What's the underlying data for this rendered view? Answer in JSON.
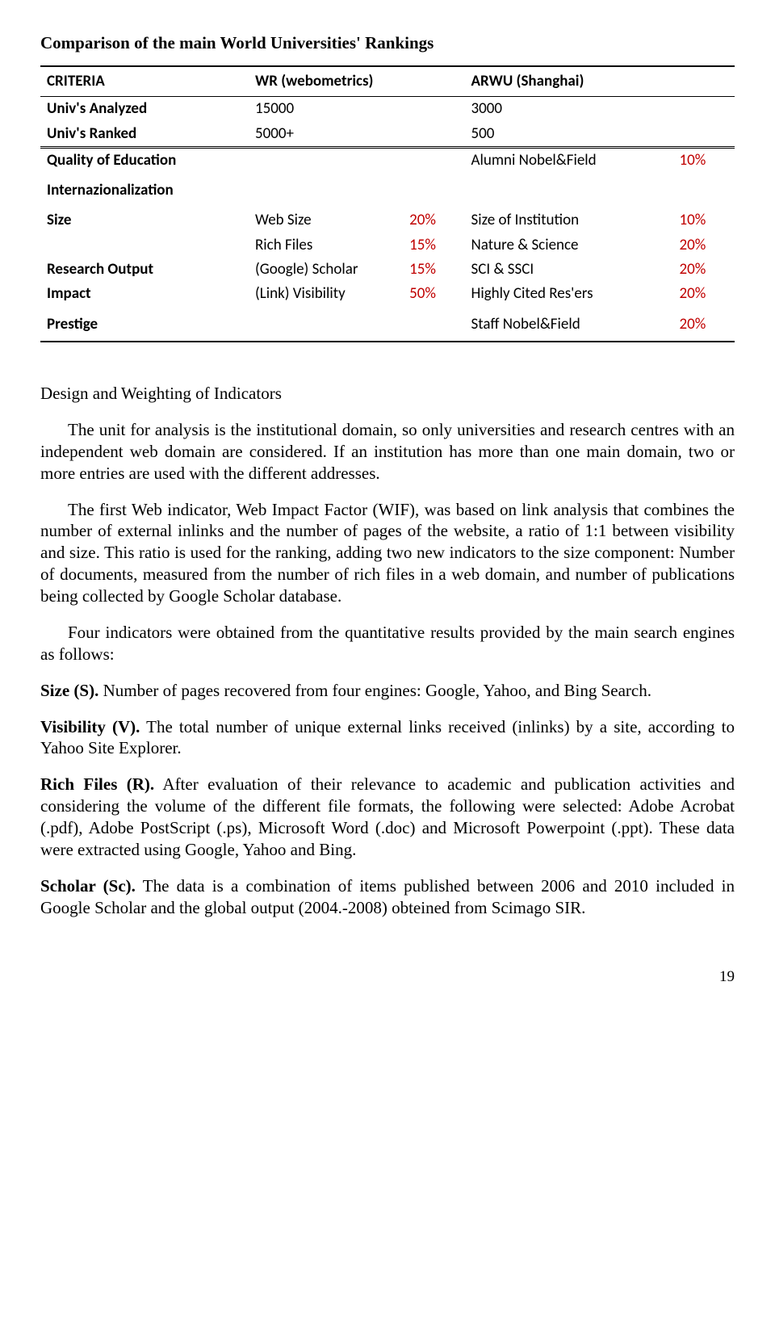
{
  "title": "Comparison of the main World Universities' Rankings",
  "table": {
    "headers": {
      "criteria": "CRITERIA",
      "wr": "WR (webometrics)",
      "arwu": "ARWU (Shanghai)"
    },
    "rows": {
      "r1": {
        "crit": "Univ's Analyzed",
        "wr": "15000",
        "arwu": "3000"
      },
      "r2": {
        "crit": "Univ's Ranked",
        "wr": "5000+",
        "arwu": "500"
      },
      "r3": {
        "crit": "Quality of Education",
        "wr": "",
        "wr_pct": "",
        "arwu": "Alumni Nobel&Field",
        "arwu_pct": "10%"
      },
      "r4": {
        "crit": "Internazionalization",
        "wr": "",
        "wr_pct": "",
        "arwu": "",
        "arwu_pct": ""
      },
      "r5": {
        "crit": "Size",
        "wr": "Web Size",
        "wr_pct": "20%",
        "arwu": "Size of Institution",
        "arwu_pct": "10%"
      },
      "r6": {
        "crit": "",
        "wr": "Rich Files",
        "wr_pct": "15%",
        "arwu": "Nature & Science",
        "arwu_pct": "20%"
      },
      "r7": {
        "crit": "Research Output",
        "wr": "(Google) Scholar",
        "wr_pct": "15%",
        "arwu": "SCI & SSCI",
        "arwu_pct": "20%"
      },
      "r8": {
        "crit": "Impact",
        "wr": "(Link) Visibility",
        "wr_pct": "50%",
        "arwu": "Highly Cited Res'ers",
        "arwu_pct": "20%"
      },
      "r9": {
        "crit": "Prestige",
        "wr": "",
        "wr_pct": "",
        "arwu": "Staff Nobel&Field",
        "arwu_pct": "20%"
      }
    },
    "colors": {
      "percent": "#c00000",
      "text": "#000000",
      "border": "#000000"
    }
  },
  "section_heading": "Design and Weighting of Indicators",
  "paragraphs": {
    "p1": "The unit for analysis is the institutional domain, so only universities and research centres with an independent web domain are considered. If an institution has more than one main domain, two or more entries are used with the different addresses.",
    "p2": "The first Web indicator, Web Impact Factor (WIF), was based on link analysis that combines the number of external inlinks and the number of pages of the website, a ratio of 1:1 between visibility and size. This ratio is used for the ranking, adding two new indicators to the size component: Number of documents, measured from the number of rich files in a web domain, and number of publications being collected by Google Scholar database.",
    "p3": "Four indicators were obtained from the quantitative results provided by the main search engines as follows:",
    "size_label": "Size (S).",
    "size_text": " Number of pages recovered from four engines: Google, Yahoo, and Bing Search.",
    "vis_label": "Visibility (V).",
    "vis_text": " The total number of unique external links received (inlinks) by a site, according to Yahoo Site Explorer.",
    "rich_label": "Rich Files (R).",
    "rich_text": " After evaluation of their relevance to academic and publication activities and considering the volume of the different file formats, the following were selected: Adobe Acrobat (.pdf), Adobe PostScript (.ps), Microsoft Word (.doc) and Microsoft Powerpoint (.ppt). These data were extracted using Google, Yahoo and Bing.",
    "scholar_label": "Scholar (Sc).",
    "scholar_text": " The data is a combination of items published between 2006 and 2010 included in Google Scholar and the global output (2004.-2008) obteined from Scimago SIR."
  },
  "page_number": "19"
}
